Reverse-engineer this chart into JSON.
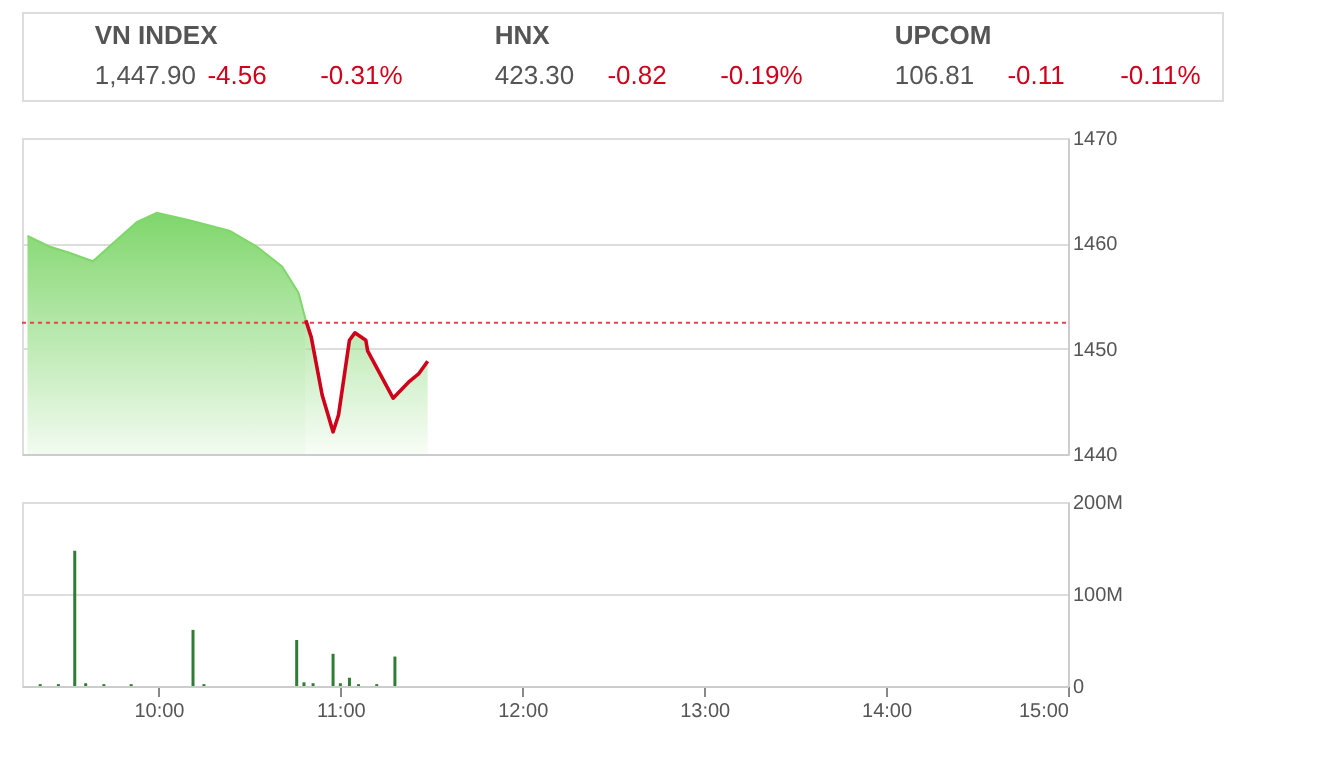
{
  "chart_data": [
    {
      "type": "other",
      "annotations": [
        "VN INDEX",
        "1,447.90",
        "-4.56",
        "-0.31%",
        "HNX",
        "423.30",
        "-0.82",
        "-0.19%",
        "UPCOM",
        "106.81",
        "-0.11",
        "-0.11%"
      ]
    },
    {
      "type": "area",
      "xlim": [
        9.25,
        15
      ],
      "ylim": [
        1440,
        1470
      ],
      "yticks": [
        1440,
        1450,
        1460,
        1470
      ],
      "grid": "y",
      "tick_labels": "y",
      "series": [
        {
          "type": "area",
          "color": "#7fd66b",
          "x": [
            9.28,
            9.4,
            9.51,
            9.64,
            9.73,
            9.88,
            9.99,
            10.17,
            10.39,
            10.54,
            10.68,
            10.77,
            10.81
          ],
          "values": [
            1460.7,
            1459.7,
            1459.1,
            1458.3,
            1459.7,
            1462.0,
            1462.9,
            1462.2,
            1461.2,
            1459.7,
            1457.8,
            1455.3,
            1452.7
          ]
        },
        {
          "type": "area",
          "color": "#d0021b",
          "x": [
            10.81,
            10.84,
            10.9,
            10.96,
            10.99,
            11.05,
            11.08,
            11.14,
            11.15,
            11.29,
            11.38,
            11.43,
            11.48
          ],
          "values": [
            1452.7,
            1451.1,
            1445.6,
            1442.1,
            1443.7,
            1450.8,
            1451.5,
            1450.8,
            1449.8,
            1445.3,
            1446.9,
            1447.6,
            1448.8
          ]
        }
      ],
      "ref_lines": [
        {
          "axis": "y",
          "value": 1452.46,
          "color": "#e0474c",
          "line_style": "dotted"
        }
      ]
    },
    {
      "type": "bar",
      "xlim": [
        9.25,
        15
      ],
      "xticks": [
        {
          "value": 10,
          "label": "10:00"
        },
        {
          "value": 11,
          "label": "11:00"
        },
        {
          "value": 12,
          "label": "12:00"
        },
        {
          "value": 13,
          "label": "13:00"
        },
        {
          "value": 14,
          "label": "14:00"
        },
        {
          "value": 15,
          "label": "15:00"
        }
      ],
      "ylim": [
        0,
        200
      ],
      "yticks": [
        0,
        {
          "value": 100,
          "label": "100M"
        },
        {
          "value": 200,
          "label": "200M"
        }
      ],
      "grid": "y",
      "x": [
        9.35,
        9.45,
        9.54,
        9.6,
        9.7,
        9.85,
        10.19,
        10.25,
        10.4,
        10.55,
        10.76,
        10.8,
        10.85,
        10.96,
        11.0,
        11.05,
        11.1,
        11.2,
        11.3
      ],
      "values": [
        2,
        2,
        147,
        3,
        2,
        2,
        61,
        2,
        null,
        null,
        50,
        4,
        3,
        35,
        3,
        9,
        2,
        2,
        32
      ],
      "color": "#2e7d32"
    }
  ]
}
